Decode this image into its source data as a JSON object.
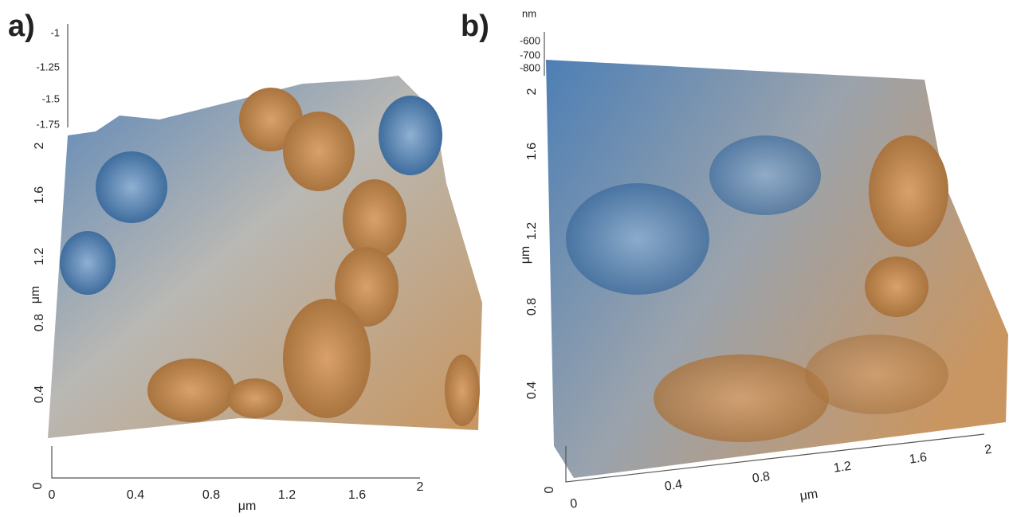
{
  "panels": [
    {
      "label": "a)",
      "z_unit": null,
      "z_ticks": [
        "-1",
        "-1.25",
        "-1.5",
        "-1.75"
      ],
      "y_ticks": [
        "2",
        "1.6",
        "1.2",
        "0.8",
        "0.4",
        "0"
      ],
      "y_label": "μm",
      "x_ticks": [
        "0",
        "0.4",
        "0.8",
        "1.2",
        "1.6",
        "2"
      ],
      "x_label": "μm"
    },
    {
      "label": "b)",
      "z_unit": "nm",
      "z_ticks": [
        "-600",
        "-700",
        "-800"
      ],
      "y_ticks": [
        "2",
        "1.6",
        "1.2",
        "0.8",
        "0.4",
        "0"
      ],
      "y_label": "μm",
      "x_ticks": [
        "0",
        "0.4",
        "0.8",
        "1.2",
        "1.6",
        "2"
      ],
      "x_label": "μm"
    }
  ]
}
